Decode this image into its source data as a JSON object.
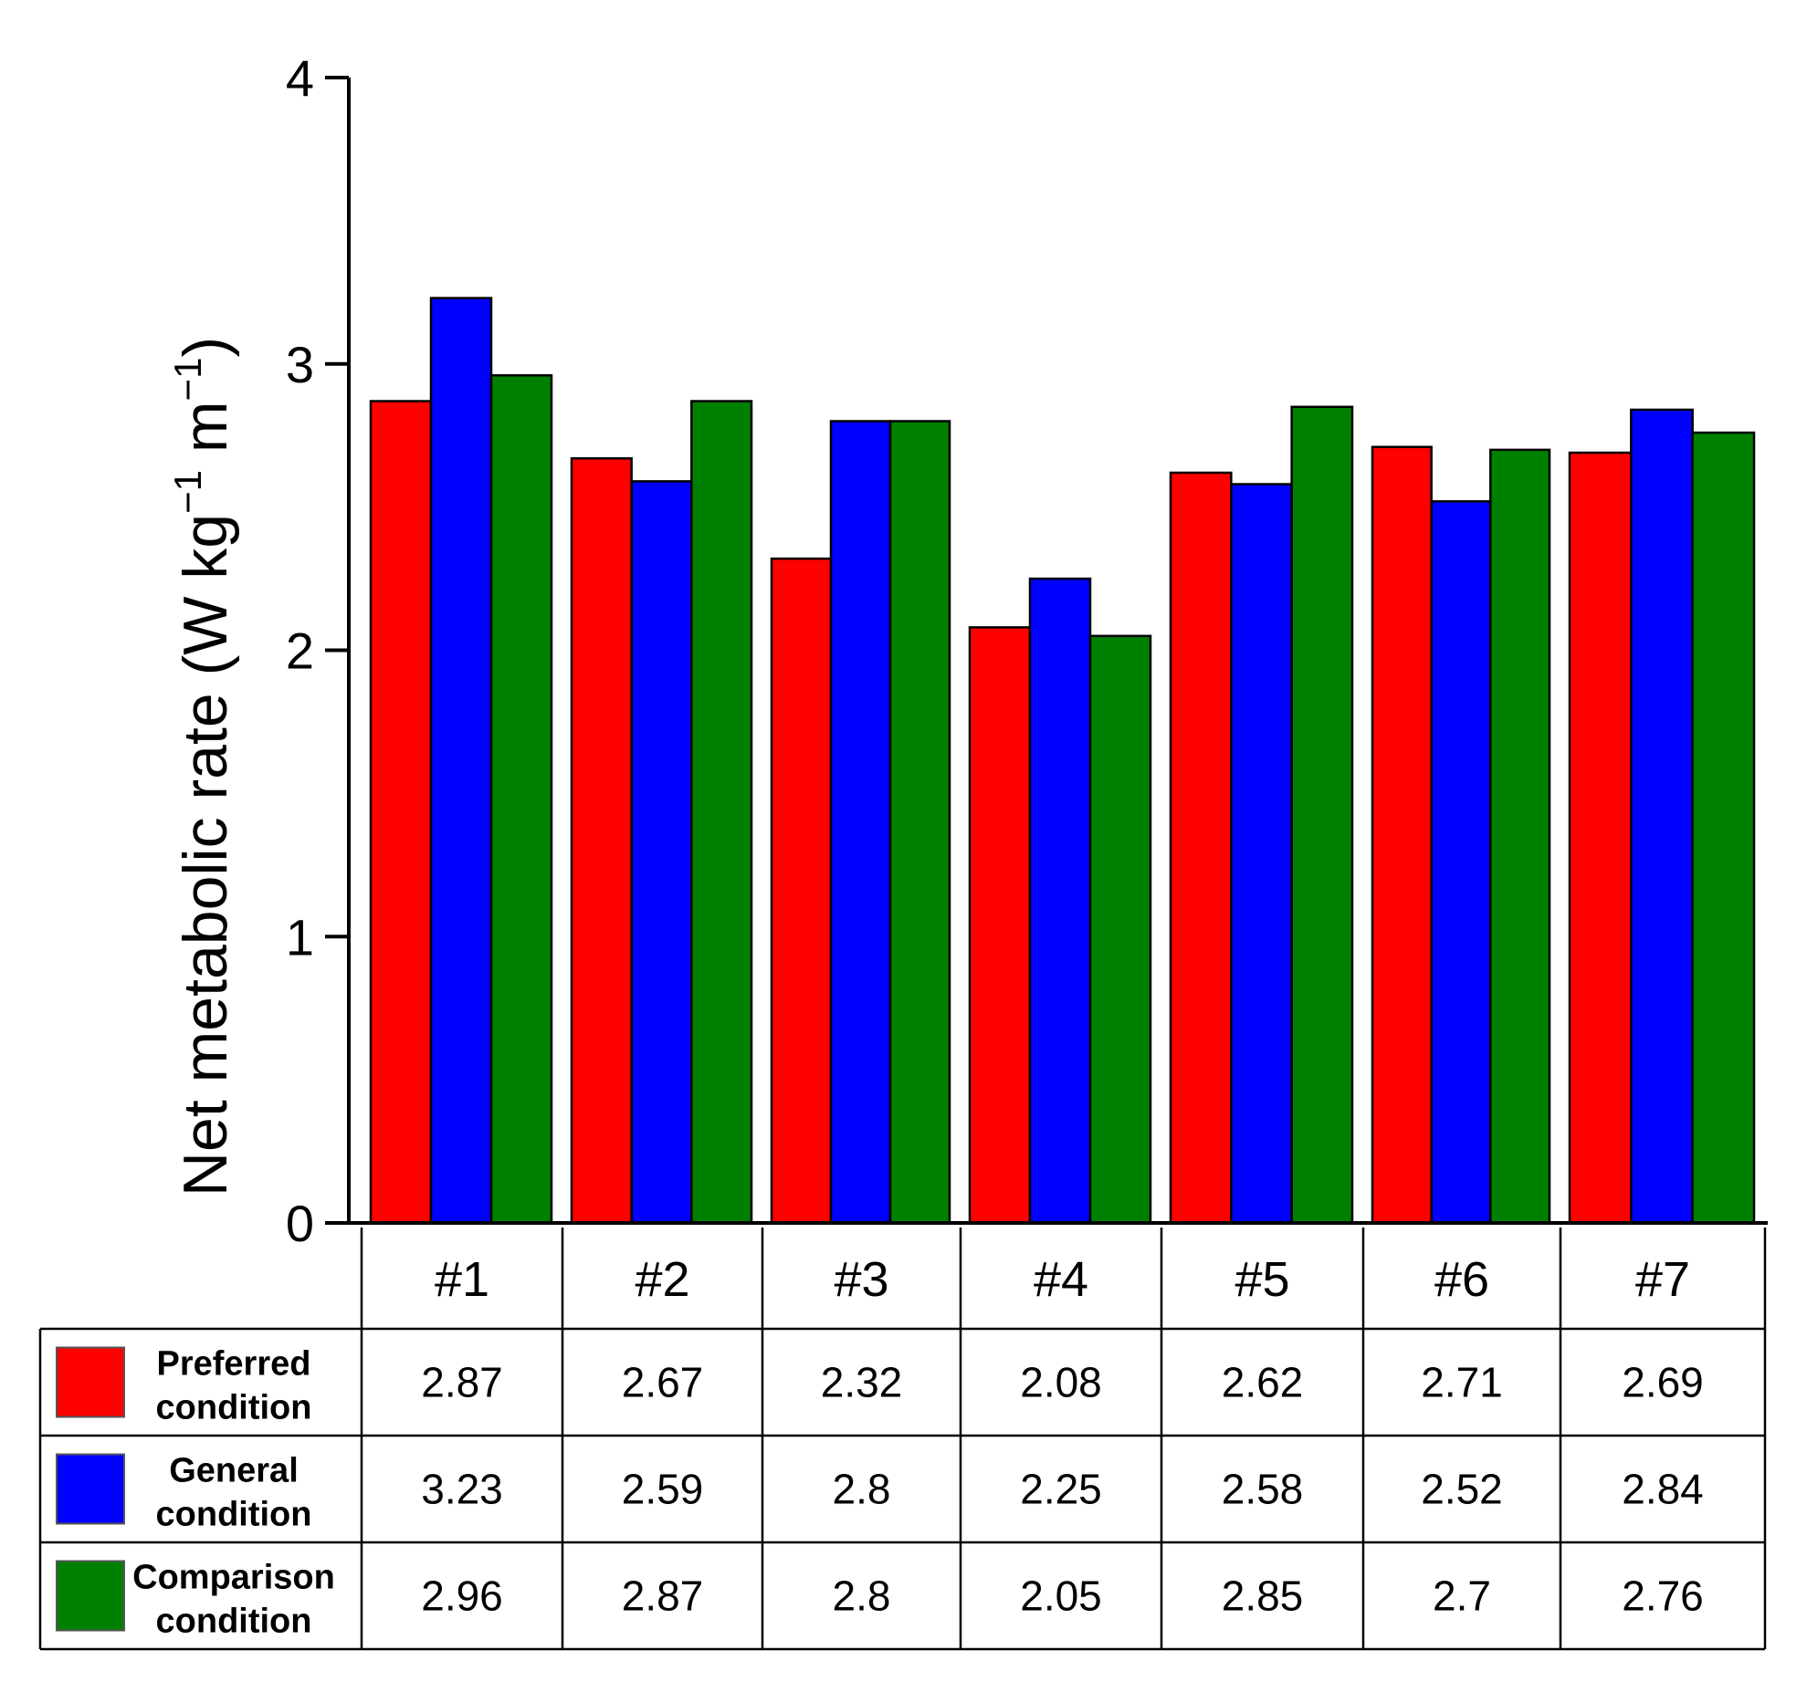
{
  "chart_data": {
    "type": "bar",
    "title": "",
    "xlabel": "",
    "ylabel": "Net metabolic rate (W kg⁻¹ m⁻¹)",
    "ylabel_parts": {
      "main": "Net metabolic rate (W kg",
      "sup1": "−1",
      "mid": " m",
      "sup2": "−1",
      "end": ")"
    },
    "ylim": [
      0,
      4
    ],
    "yticks": [
      "0",
      "1",
      "2",
      "3",
      "4"
    ],
    "categories": [
      "#1",
      "#2",
      "#3",
      "#4",
      "#5",
      "#6",
      "#7"
    ],
    "series": [
      {
        "name": "Preferred condition",
        "name_lines": [
          "Preferred",
          "condition"
        ],
        "color": "#ff0000",
        "values": [
          2.87,
          2.67,
          2.32,
          2.08,
          2.62,
          2.71,
          2.69
        ],
        "labels": [
          "2.87",
          "2.67",
          "2.32",
          "2.08",
          "2.62",
          "2.71",
          "2.69"
        ]
      },
      {
        "name": "General condition",
        "name_lines": [
          "General",
          "condition"
        ],
        "color": "#0000ff",
        "values": [
          3.23,
          2.59,
          2.8,
          2.25,
          2.58,
          2.52,
          2.84
        ],
        "labels": [
          "3.23",
          "2.59",
          "2.8",
          "2.25",
          "2.58",
          "2.52",
          "2.84"
        ]
      },
      {
        "name": "Comparison condition",
        "name_lines": [
          "Comparison",
          "condition"
        ],
        "color": "#008000",
        "values": [
          2.96,
          2.87,
          2.8,
          2.05,
          2.85,
          2.7,
          2.76
        ],
        "labels": [
          "2.96",
          "2.87",
          "2.8",
          "2.05",
          "2.85",
          "2.7",
          "2.76"
        ]
      }
    ],
    "grid": false,
    "legend": "data-table-below"
  }
}
